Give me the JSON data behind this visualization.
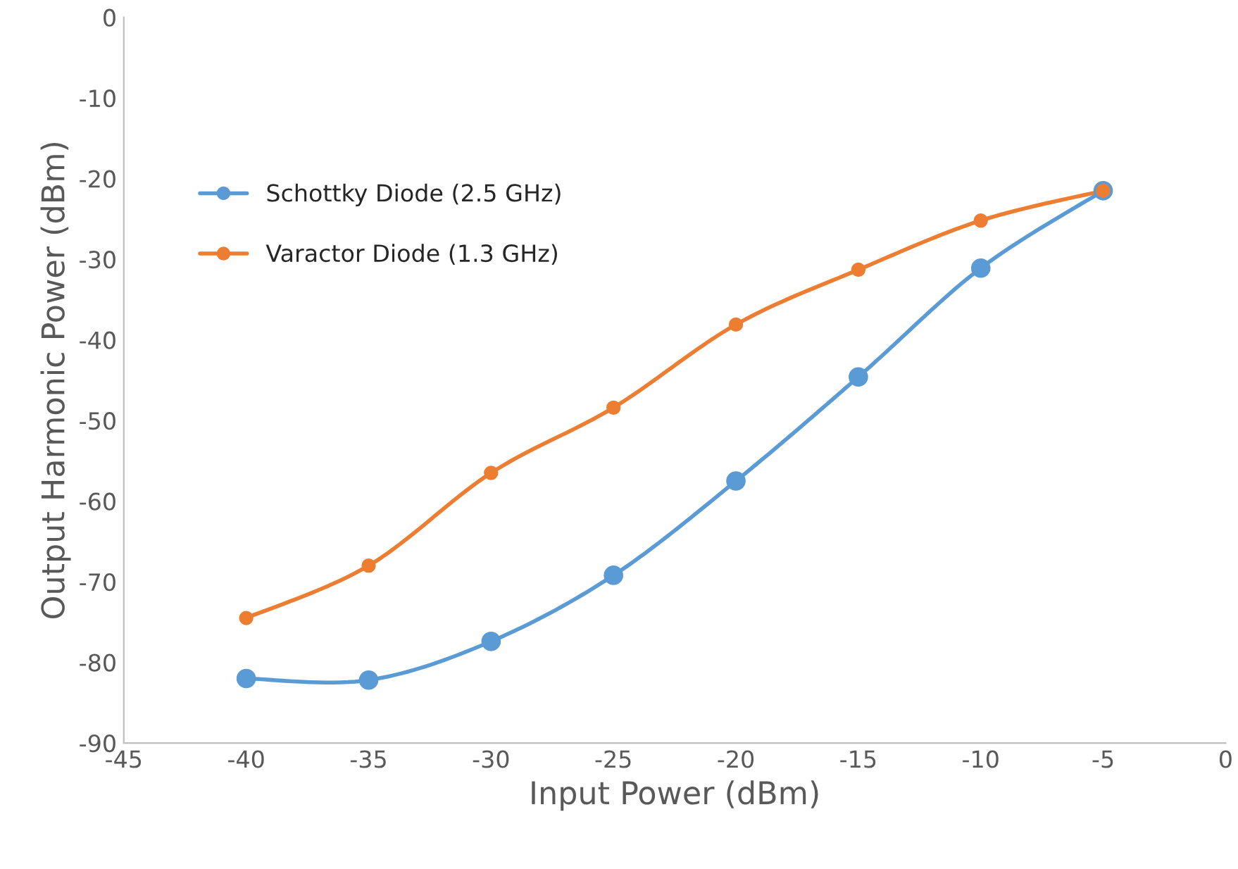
{
  "chart_data": {
    "type": "line",
    "xlabel": "Input Power (dBm)",
    "ylabel": "Output Harmonic Power (dBm)",
    "x": [
      -40,
      -35,
      -30,
      -25,
      -20,
      -15,
      -10,
      -5
    ],
    "series": [
      {
        "name": "Schottky Diode (2.5 GHz)",
        "color": "#5b9bd5",
        "values": [
          -82.0,
          -82.2,
          -77.4,
          -69.2,
          -57.5,
          -44.6,
          -31.1,
          -21.5
        ]
      },
      {
        "name": "Varactor Diode (1.3 GHz)",
        "color": "#ed7d31",
        "values": [
          -74.5,
          -68.0,
          -56.5,
          -48.4,
          -38.1,
          -31.3,
          -25.2,
          -21.5
        ]
      }
    ],
    "xlim": [
      -45,
      0
    ],
    "xticks": [
      -45,
      -40,
      -35,
      -30,
      -25,
      -20,
      -15,
      -10,
      -5,
      0
    ],
    "ylim": [
      -90,
      0
    ],
    "yticks": [
      -90,
      -80,
      -70,
      -60,
      -50,
      -40,
      -30,
      -20,
      -10,
      0
    ],
    "grid": false,
    "legend": "top left",
    "marker": "circle",
    "line_style": "solid"
  }
}
